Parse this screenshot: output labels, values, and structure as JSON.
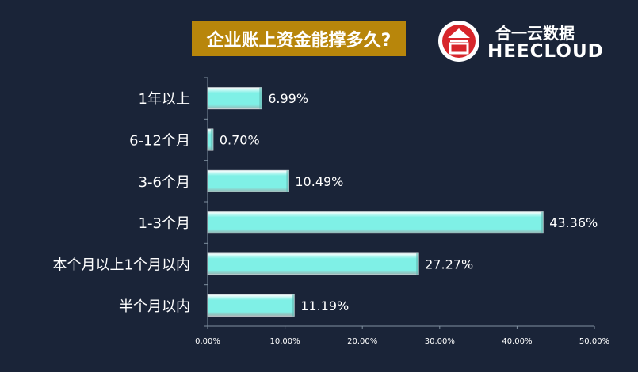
{
  "title": "企业账上资金能撑多久?",
  "logo": {
    "cn_text": "合一云数据",
    "en_text": "HEECLOUD",
    "brand_color": "#d7262b",
    "icon": "heecloud-logo-icon"
  },
  "colors": {
    "background": "#1a2438",
    "title_bg": "#b8860b",
    "bar_fill": "#7ff0e6",
    "bar_border": "#d0d8dc"
  },
  "chart_data": {
    "type": "bar",
    "orientation": "horizontal",
    "categories": [
      "1年以上",
      "6-12个月",
      "3-6个月",
      "1-3个月",
      "本个月以上1个月以内",
      "半个月以内"
    ],
    "values": [
      6.99,
      0.7,
      10.49,
      43.36,
      27.27,
      11.19
    ],
    "value_labels": [
      "6.99%",
      "0.70%",
      "10.49%",
      "43.36%",
      "27.27%",
      "11.19%"
    ],
    "xlim": [
      0,
      50
    ],
    "x_ticks": [
      "0.00%",
      "10.00%",
      "20.00%",
      "30.00%",
      "40.00%",
      "50.00%"
    ],
    "xlabel": "",
    "ylabel": "",
    "grid": false,
    "legend": "none"
  }
}
